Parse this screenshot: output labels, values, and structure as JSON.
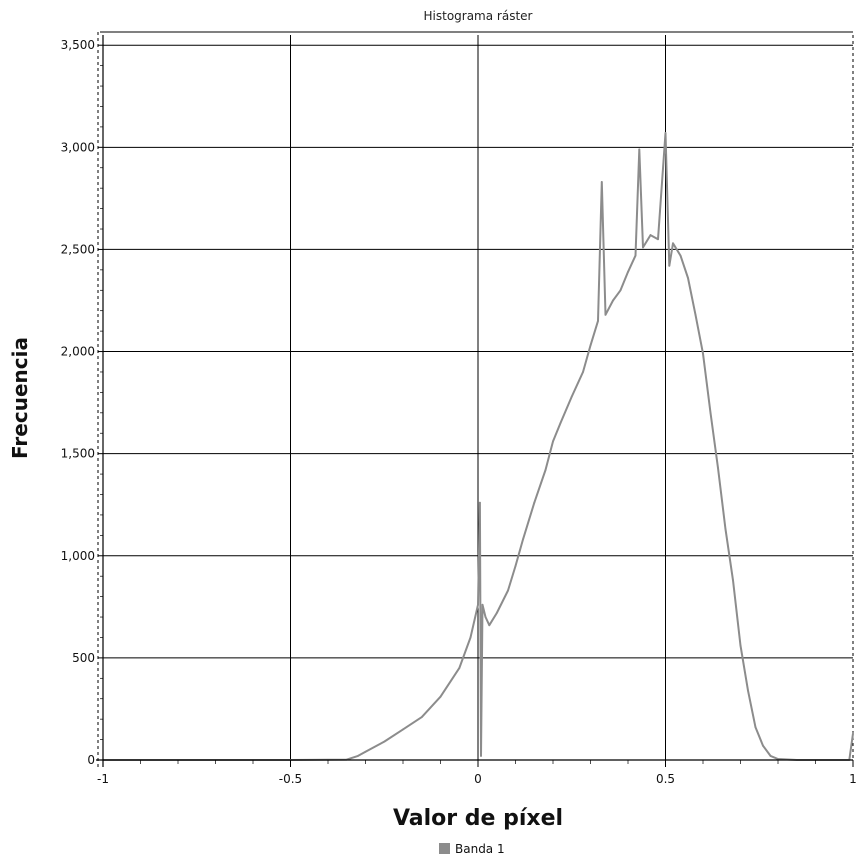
{
  "colors": {
    "series": "#8c8c8c",
    "grid": "#000000",
    "background": "#ffffff"
  },
  "chart_data": {
    "type": "line",
    "title": "Histograma ráster",
    "xlabel": "Valor de píxel",
    "ylabel": "Frecuencia",
    "xlim": [
      -1,
      1
    ],
    "ylim": [
      0,
      3550
    ],
    "grid": true,
    "legend_position": "bottom",
    "x_ticks": [
      {
        "value": -1,
        "label": "-1"
      },
      {
        "value": -0.5,
        "label": "-0.5"
      },
      {
        "value": 0,
        "label": "0"
      },
      {
        "value": 0.5,
        "label": "0.5"
      },
      {
        "value": 1,
        "label": "1"
      }
    ],
    "y_ticks": [
      {
        "value": 0,
        "label": "0"
      },
      {
        "value": 500,
        "label": "500"
      },
      {
        "value": 1000,
        "label": "1,000"
      },
      {
        "value": 1500,
        "label": "1,500"
      },
      {
        "value": 2000,
        "label": "2,000"
      },
      {
        "value": 2500,
        "label": "2,500"
      },
      {
        "value": 3000,
        "label": "3,000"
      },
      {
        "value": 3500,
        "label": "3,500"
      }
    ],
    "series": [
      {
        "name": "Banda 1",
        "points": [
          [
            -1.0,
            0
          ],
          [
            -0.5,
            0
          ],
          [
            -0.35,
            2
          ],
          [
            -0.32,
            20
          ],
          [
            -0.3,
            40
          ],
          [
            -0.25,
            90
          ],
          [
            -0.2,
            150
          ],
          [
            -0.15,
            210
          ],
          [
            -0.1,
            310
          ],
          [
            -0.05,
            450
          ],
          [
            -0.02,
            600
          ],
          [
            0.0,
            760
          ],
          [
            0.005,
            1260
          ],
          [
            0.008,
            20
          ],
          [
            0.012,
            760
          ],
          [
            0.02,
            700
          ],
          [
            0.03,
            660
          ],
          [
            0.05,
            720
          ],
          [
            0.08,
            830
          ],
          [
            0.1,
            950
          ],
          [
            0.12,
            1080
          ],
          [
            0.15,
            1260
          ],
          [
            0.18,
            1420
          ],
          [
            0.2,
            1560
          ],
          [
            0.22,
            1650
          ],
          [
            0.25,
            1780
          ],
          [
            0.28,
            1900
          ],
          [
            0.3,
            2030
          ],
          [
            0.32,
            2150
          ],
          [
            0.33,
            2830
          ],
          [
            0.34,
            2180
          ],
          [
            0.36,
            2250
          ],
          [
            0.38,
            2300
          ],
          [
            0.4,
            2390
          ],
          [
            0.42,
            2470
          ],
          [
            0.43,
            2990
          ],
          [
            0.44,
            2510
          ],
          [
            0.46,
            2570
          ],
          [
            0.48,
            2550
          ],
          [
            0.5,
            3070
          ],
          [
            0.51,
            2420
          ],
          [
            0.52,
            2530
          ],
          [
            0.54,
            2470
          ],
          [
            0.56,
            2360
          ],
          [
            0.58,
            2180
          ],
          [
            0.6,
            1990
          ],
          [
            0.62,
            1700
          ],
          [
            0.64,
            1430
          ],
          [
            0.66,
            1130
          ],
          [
            0.68,
            880
          ],
          [
            0.7,
            560
          ],
          [
            0.72,
            340
          ],
          [
            0.74,
            160
          ],
          [
            0.76,
            70
          ],
          [
            0.78,
            20
          ],
          [
            0.8,
            5
          ],
          [
            0.85,
            0
          ],
          [
            0.99,
            0
          ],
          [
            1.0,
            130
          ]
        ]
      }
    ]
  }
}
